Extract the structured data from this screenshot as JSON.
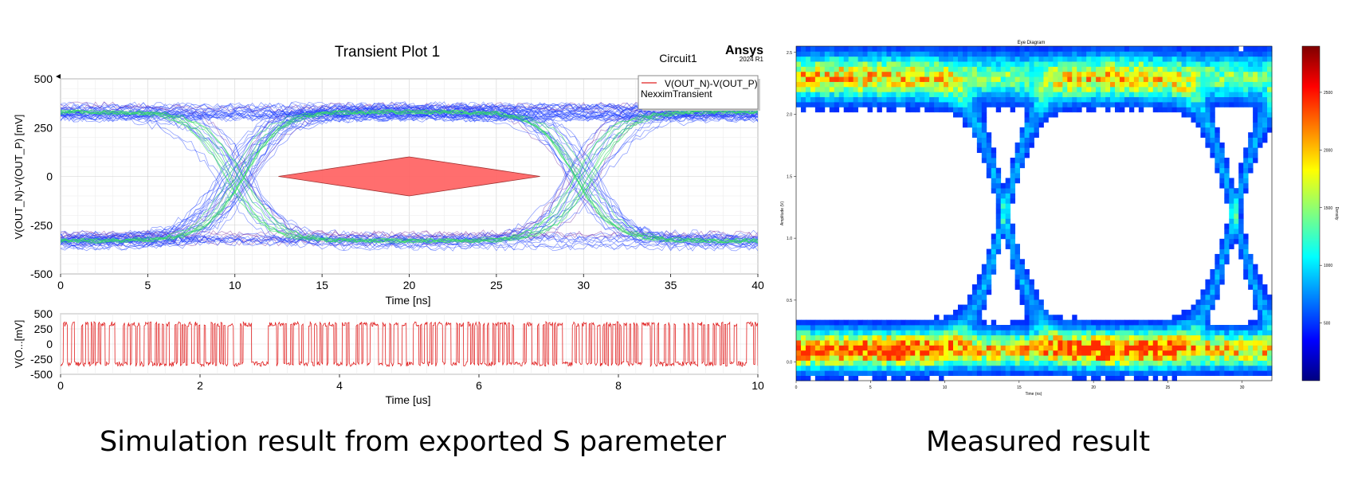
{
  "captions": {
    "left": "Simulation result from exported S paremeter",
    "right": "Measured result"
  },
  "brand": {
    "name": "Ansys",
    "version": "2024 R1"
  },
  "chart_data": [
    {
      "id": "eye-transient",
      "type": "line",
      "title": "Transient  Plot 1",
      "subtitle": "Circuit1",
      "xlabel": "Time [ns]",
      "ylabel": "V(OUT_N)-V(OUT_P) [mV]",
      "xlim": [
        0,
        40
      ],
      "ylim": [
        -500,
        500
      ],
      "xticks": [
        0,
        5,
        10,
        15,
        20,
        25,
        30,
        35,
        40
      ],
      "yticks": [
        500,
        250,
        0,
        -250,
        -500
      ],
      "grid": true,
      "legend": {
        "placement": "top-right",
        "entries": [
          "V(OUT_N)-V(OUT_P)",
          "NexximTransient"
        ]
      },
      "eye_levels_mv": [
        330,
        -330
      ],
      "crossings_ns": [
        10,
        30
      ],
      "unit_interval_ns": 20,
      "mask": {
        "x": [
          12.5,
          20,
          27.5,
          20
        ],
        "y": [
          0,
          100,
          0,
          -100
        ],
        "color": "#ff6666"
      },
      "trace_color": "#1f3fff",
      "density_color": "#33dd66"
    },
    {
      "id": "waveform",
      "type": "line",
      "xlabel": "Time [us]",
      "ylabel": "V(O...[mV]",
      "xlim": [
        0,
        10
      ],
      "ylim": [
        -500,
        500
      ],
      "xticks": [
        0,
        2,
        4,
        6,
        8,
        10
      ],
      "yticks": [
        500,
        250,
        0,
        -250,
        -500
      ],
      "grid": true,
      "levels_mv": [
        330,
        -330
      ],
      "color": "#e02020"
    },
    {
      "id": "measured-eye",
      "type": "heatmap",
      "title": "Eye Diagram",
      "xlabel": "Time (ns)",
      "ylabel": "Amplitude (V)",
      "xlim": [
        0,
        32
      ],
      "ylim": [
        -0.15,
        2.55
      ],
      "xticks": [
        0,
        5,
        10,
        15,
        20,
        25,
        30
      ],
      "yticks": [
        0.0,
        0.5,
        1.0,
        1.5,
        2.0,
        2.5
      ],
      "ytick_labels": [
        "0.0",
        "0.5",
        "1.0",
        "1.5",
        "2.0",
        "2.5"
      ],
      "colorbar": {
        "label": "Density",
        "ticks": [
          500,
          1000,
          1500,
          2000,
          2500
        ],
        "range": [
          0,
          2900
        ]
      },
      "rails_v": [
        0.1,
        2.3
      ],
      "crossings_ns": [
        14,
        29.5
      ]
    }
  ]
}
